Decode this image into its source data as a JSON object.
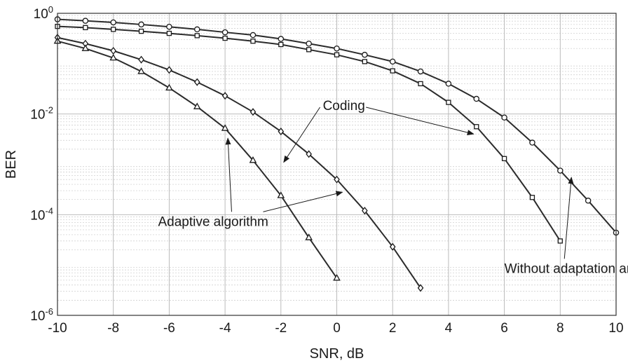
{
  "chart_data": {
    "type": "line",
    "title": "",
    "xlabel": "SNR, dB",
    "ylabel": "BER",
    "xlim": [
      -10,
      10
    ],
    "ylim": [
      1e-06,
      1
    ],
    "yscale": "log",
    "grid": true,
    "minor_grid": true,
    "x_ticks": [
      -10,
      -8,
      -6,
      -4,
      -2,
      0,
      2,
      4,
      6,
      8,
      10
    ],
    "x_tick_labels": [
      "-10",
      "-8",
      "-6",
      "-4",
      "-2",
      "0",
      "2",
      "4",
      "6",
      "8",
      "10"
    ],
    "y_ticks": [
      1e-06,
      0.0001,
      0.01,
      1
    ],
    "y_tick_labels": [
      {
        "base": "10",
        "exp": "-6"
      },
      {
        "base": "10",
        "exp": "-4"
      },
      {
        "base": "10",
        "exp": "-2"
      },
      {
        "base": "10",
        "exp": "0"
      }
    ],
    "series": [
      {
        "marker": "circle",
        "x": [
          -10,
          -9,
          -8,
          -7,
          -6,
          -5,
          -4,
          -3,
          -2,
          -1,
          0,
          1,
          2,
          3,
          4,
          5,
          6,
          7,
          8,
          9,
          10
        ],
        "y": [
          0.76,
          0.71,
          0.66,
          0.6,
          0.54,
          0.48,
          0.42,
          0.37,
          0.31,
          0.25,
          0.2,
          0.15,
          0.11,
          0.07,
          0.04,
          0.02,
          0.0085,
          0.0027,
          0.00075,
          0.00019,
          4.4e-05
        ]
      },
      {
        "marker": "square",
        "x": [
          -10,
          -9,
          -8,
          -7,
          -6,
          -5,
          -4,
          -3,
          -2,
          -1,
          0,
          1,
          2,
          3,
          4,
          5,
          6,
          7,
          8
        ],
        "y": [
          0.55,
          0.52,
          0.48,
          0.44,
          0.4,
          0.36,
          0.32,
          0.28,
          0.24,
          0.19,
          0.15,
          0.11,
          0.072,
          0.04,
          0.017,
          0.0056,
          0.0013,
          0.00022,
          3e-05
        ]
      },
      {
        "marker": "diamond",
        "x": [
          -10,
          -9,
          -8,
          -7,
          -6,
          -5,
          -4,
          -3,
          -2,
          -1,
          0,
          1,
          2,
          3
        ],
        "y": [
          0.33,
          0.25,
          0.18,
          0.12,
          0.075,
          0.043,
          0.023,
          0.011,
          0.0045,
          0.0016,
          0.0005,
          0.00012,
          2.3e-05,
          3.5e-06
        ]
      },
      {
        "marker": "triangle",
        "x": [
          -10,
          -9,
          -8,
          -7,
          -6,
          -5,
          -4,
          -3,
          -2,
          -1,
          0
        ],
        "y": [
          0.28,
          0.2,
          0.13,
          0.07,
          0.033,
          0.014,
          0.0052,
          0.0012,
          0.00024,
          3.5e-05,
          5.5e-06
        ]
      }
    ],
    "annotations": [
      {
        "id": "coding",
        "text": "Coding",
        "x": -0.5,
        "y": 0.012,
        "arrows": [
          {
            "x": -1.9,
            "y": 0.0011
          },
          {
            "x": 4.9,
            "y": 0.004
          }
        ]
      },
      {
        "id": "adaptive",
        "text": "Adaptive algorithm",
        "x": -6.4,
        "y": 6e-05,
        "arrows": [
          {
            "x": -3.9,
            "y": 0.0033
          },
          {
            "x": 0.2,
            "y": 0.00028
          }
        ]
      },
      {
        "id": "without",
        "text": "Without adaptation and coding",
        "x": 6.0,
        "y": 7e-06,
        "arrows": [
          {
            "x": 8.4,
            "y": 0.00055
          }
        ]
      }
    ]
  }
}
